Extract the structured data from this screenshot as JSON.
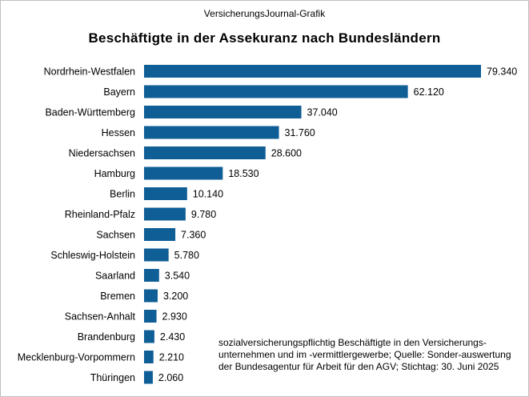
{
  "chart_data": {
    "type": "bar",
    "orientation": "horizontal",
    "supertitle": "VersicherungsJournal-Grafik",
    "title": "Beschäftigte in der Assekuranz nach Bundesländern",
    "categories": [
      "Nordrhein-Westfalen",
      "Bayern",
      "Baden-Württemberg",
      "Hessen",
      "Niedersachsen",
      "Hamburg",
      "Berlin",
      "Rheinland-Pfalz",
      "Sachsen",
      "Schleswig-Holstein",
      "Saarland",
      "Bremen",
      "Sachsen-Anhalt",
      "Brandenburg",
      "Mecklenburg-Vorpommern",
      "Thüringen"
    ],
    "values": [
      79340,
      62120,
      37040,
      31760,
      28600,
      18530,
      10140,
      9780,
      7360,
      5780,
      3540,
      3200,
      2930,
      2430,
      2210,
      2060
    ],
    "value_labels": [
      "79.340",
      "62.120",
      "37.040",
      "31.760",
      "28.600",
      "18.530",
      "10.140",
      "9.780",
      "7.360",
      "5.780",
      "3.540",
      "3.200",
      "2.930",
      "2.430",
      "2.210",
      "2.060"
    ],
    "xlim": [
      0,
      79340
    ],
    "grid": false,
    "bar_color": "#0f5e96",
    "footnote": "sozialversicherungspflichtig Beschäftigte in den Versicherungs-unternehmen und im -vermittlergewerbe; Quelle: Sonder-auswertung der Bundesagentur für Arbeit für den AGV; Stichtag: 30. Juni 2025"
  }
}
